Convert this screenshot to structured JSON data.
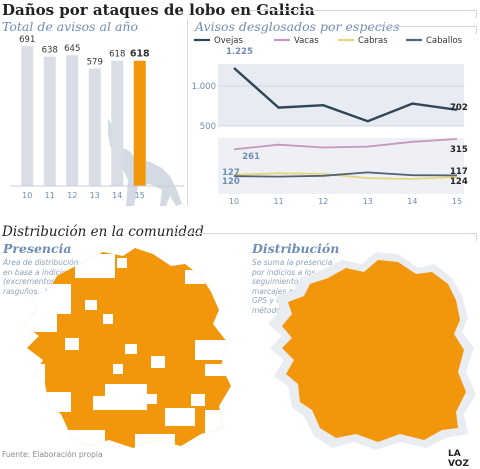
{
  "header": {
    "title": "Daños por ataques de lobo en Galicia"
  },
  "colors": {
    "accent": "#f2960c",
    "bar": "#d8dde6",
    "blue": "#6f8db5"
  },
  "chart_data": [
    {
      "type": "bar",
      "title": "Total de avisos al año",
      "categories": [
        "10",
        "11",
        "12",
        "13",
        "14",
        "15"
      ],
      "values": [
        691,
        638,
        645,
        579,
        618,
        618
      ],
      "ylim": [
        0,
        720
      ],
      "highlight": "15"
    },
    {
      "type": "line",
      "title": "Avisos desglosados por especies",
      "x": [
        "10",
        "11",
        "12",
        "13",
        "14",
        "15"
      ],
      "y_ticks": [
        "1.000",
        "500"
      ],
      "series": [
        {
          "name": "Ovejas",
          "color": "#2f4558",
          "values": [
            1225,
            730,
            760,
            560,
            780,
            702
          ],
          "start_label": "1.225",
          "end_label": "702"
        },
        {
          "name": "Vacas",
          "color": "#c597bf",
          "values": [
            261,
            285,
            270,
            275,
            300,
            315
          ],
          "start_label": "261",
          "end_label": "315"
        },
        {
          "name": "Cabras",
          "color": "#e6d57a",
          "values": [
            127,
            135,
            132,
            110,
            105,
            117
          ],
          "start_label": "127",
          "end_label": "117"
        },
        {
          "name": "Caballos",
          "color": "#4e6478",
          "values": [
            120,
            118,
            122,
            140,
            125,
            124
          ],
          "start_label": "120",
          "end_label": "124"
        }
      ],
      "legend": "top"
    }
  ],
  "maps": {
    "section_title": "Distribución en la comunidad",
    "left": {
      "title": "Presencia",
      "note": "Área de distribución\nen base a indicios\n(excrementos,\nrasguños...)"
    },
    "right": {
      "title": "Distribución",
      "note": "Se suma la presencia\npor indicios a los\nseguimientos de\nmarcajes por\nGPS y otros\nmétodos"
    }
  },
  "footer": {
    "source": "Fuente: Elaboración propia",
    "brand": "LA VOZ"
  }
}
